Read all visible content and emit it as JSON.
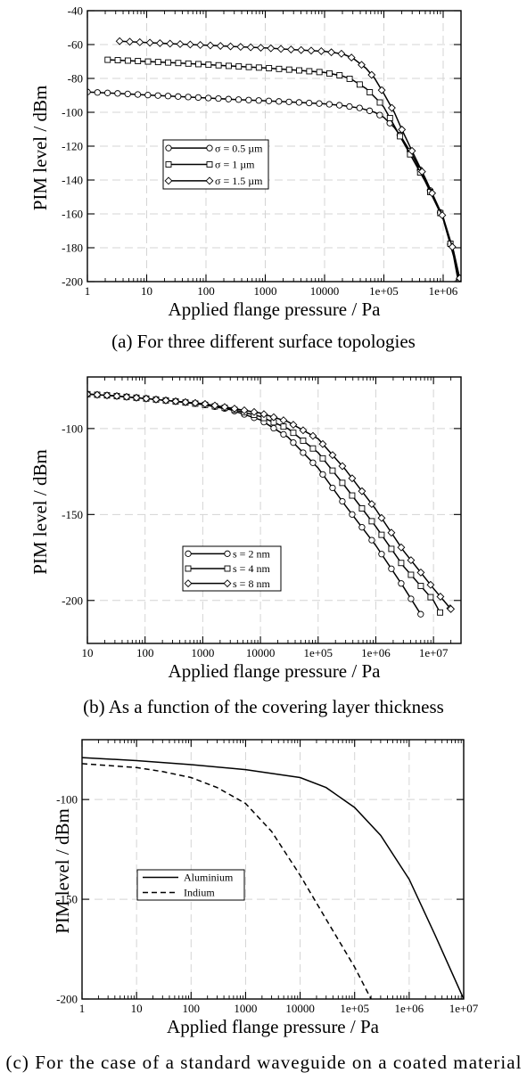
{
  "chart_data": [
    {
      "type": "line",
      "caption": "(a) For three different surface topologies",
      "xlabel": "Applied flange pressure / Pa",
      "ylabel": "PIM level / dBm",
      "x_scale": "log",
      "xlim": [
        1,
        2000000
      ],
      "ylim": [
        -200,
        -40
      ],
      "grid": true,
      "legend_placement": "center-left",
      "x_ticks": [
        1,
        10,
        100,
        1000,
        10000,
        100000,
        1000000
      ],
      "x_tick_labels": [
        "1",
        "10",
        "100",
        "1000",
        "10000",
        "1e+05",
        "1e+06"
      ],
      "y_ticks": [
        -40,
        -60,
        -80,
        -100,
        -120,
        -140,
        -160,
        -180,
        -200
      ],
      "y_tick_labels": [
        "-40",
        "-60",
        "-80",
        "-100",
        "-120",
        "-140",
        "-160",
        "-180",
        "-200"
      ],
      "series": [
        {
          "name": "σ = 0.5 µm",
          "marker": "circle",
          "x": [
            1,
            1.7,
            3,
            5,
            10,
            30,
            100,
            300,
            1000,
            3000,
            10000,
            20000,
            40000,
            70000,
            100000,
            150000,
            200000,
            300000,
            500000,
            1000000,
            1500000,
            1800000
          ],
          "y": [
            -88,
            -88.4,
            -88.8,
            -89.2,
            -89.8,
            -90.6,
            -91.5,
            -92.4,
            -93.2,
            -94,
            -95,
            -96,
            -97.5,
            -100,
            -103,
            -109,
            -115,
            -125,
            -140,
            -163,
            -185,
            -200
          ]
        },
        {
          "name": "σ = 1 µm",
          "marker": "square",
          "x": [
            2.2,
            5,
            10,
            30,
            100,
            300,
            1000,
            3000,
            10000,
            20000,
            30000,
            50000,
            80000,
            100000,
            150000,
            200000,
            300000,
            500000,
            1000000,
            1500000,
            1900000
          ],
          "y": [
            -69,
            -69.5,
            -70,
            -70.8,
            -71.8,
            -72.8,
            -73.8,
            -75,
            -76.5,
            -78.5,
            -81,
            -86,
            -93,
            -97,
            -108,
            -116,
            -127,
            -141,
            -163,
            -184,
            -200
          ]
        },
        {
          "name": "σ = 1.5 µm",
          "marker": "diamond",
          "x": [
            3.5,
            10,
            30,
            100,
            300,
            1000,
            3000,
            10000,
            20000,
            30000,
            50000,
            70000,
            100000,
            150000,
            200000,
            300000,
            500000,
            1000000,
            1500000,
            1900000
          ],
          "y": [
            -58,
            -58.8,
            -59.6,
            -60.4,
            -61.2,
            -62,
            -63,
            -64,
            -65.5,
            -68,
            -74,
            -80,
            -89,
            -100,
            -110,
            -123,
            -139,
            -162,
            -182,
            -198
          ]
        }
      ]
    },
    {
      "type": "line",
      "caption": "(b) As a function of the covering layer thickness",
      "xlabel": "Applied flange pressure / Pa",
      "ylabel": "PIM level / dBm",
      "x_scale": "log",
      "xlim": [
        10,
        30000000
      ],
      "ylim": [
        -225,
        -70
      ],
      "grid": true,
      "legend_placement": "bottom-center",
      "x_ticks": [
        10,
        100,
        1000,
        10000,
        100000,
        1000000,
        10000000
      ],
      "x_tick_labels": [
        "10",
        "100",
        "1000",
        "10000",
        "1e+05",
        "1e+06",
        "1e+07"
      ],
      "y_ticks": [
        -100,
        -150,
        -200
      ],
      "y_tick_labels": [
        "-100",
        "-150",
        "-200"
      ],
      "series": [
        {
          "name": "s = 2 nm",
          "marker": "circle",
          "x": [
            10,
            30,
            100,
            300,
            1000,
            3000,
            10000,
            30000,
            100000,
            300000,
            1000000,
            3000000,
            6000000
          ],
          "y": [
            -80,
            -81,
            -82.5,
            -84,
            -86,
            -89,
            -95,
            -105,
            -123,
            -145,
            -168,
            -192,
            -208
          ]
        },
        {
          "name": "s = 4 nm",
          "marker": "square",
          "x": [
            10,
            30,
            100,
            300,
            1000,
            3000,
            10000,
            30000,
            100000,
            300000,
            1000000,
            3000000,
            10000000,
            13000000
          ],
          "y": [
            -80,
            -81,
            -82.5,
            -84,
            -86,
            -88.5,
            -93,
            -100,
            -114,
            -134,
            -157,
            -180,
            -200,
            -207
          ]
        },
        {
          "name": "s = 8 nm",
          "marker": "diamond",
          "x": [
            10,
            30,
            100,
            300,
            1000,
            3000,
            10000,
            30000,
            100000,
            300000,
            1000000,
            3000000,
            10000000,
            20000000
          ],
          "y": [
            -80,
            -81,
            -82.5,
            -84,
            -85.5,
            -88,
            -91,
            -96,
            -106,
            -124,
            -147,
            -171,
            -193,
            -205
          ]
        }
      ]
    },
    {
      "type": "line",
      "caption": "(c) For the case of a standard waveguide on a coated material",
      "xlabel": "Applied flange pressure / Pa",
      "ylabel": "PIM level / dBm",
      "x_scale": "log",
      "xlim": [
        1,
        10000000
      ],
      "ylim": [
        -200,
        -70
      ],
      "grid": true,
      "legend_placement": "center-left",
      "x_ticks": [
        1,
        10,
        100,
        1000,
        10000,
        100000,
        1000000,
        10000000
      ],
      "x_tick_labels": [
        "1",
        "10",
        "100",
        "1000",
        "10000",
        "1e+05",
        "1e+06",
        "1e+07"
      ],
      "y_ticks": [
        -100,
        -150,
        -200
      ],
      "y_tick_labels": [
        "-100",
        "-150",
        "-200"
      ],
      "series": [
        {
          "name": "Aluminium",
          "line": "solid",
          "x": [
            1,
            10,
            100,
            1000,
            10000,
            30000,
            100000,
            300000,
            1000000,
            3000000,
            10000000
          ],
          "y": [
            -79,
            -80.5,
            -82.5,
            -85,
            -89,
            -94,
            -104,
            -118,
            -140,
            -168,
            -200
          ]
        },
        {
          "name": "Indium",
          "line": "dashed",
          "x": [
            1,
            10,
            30,
            100,
            300,
            1000,
            3000,
            10000,
            30000,
            100000,
            200000
          ],
          "y": [
            -82,
            -84,
            -86,
            -89,
            -94,
            -102,
            -116,
            -138,
            -160,
            -184,
            -200
          ]
        }
      ]
    }
  ]
}
